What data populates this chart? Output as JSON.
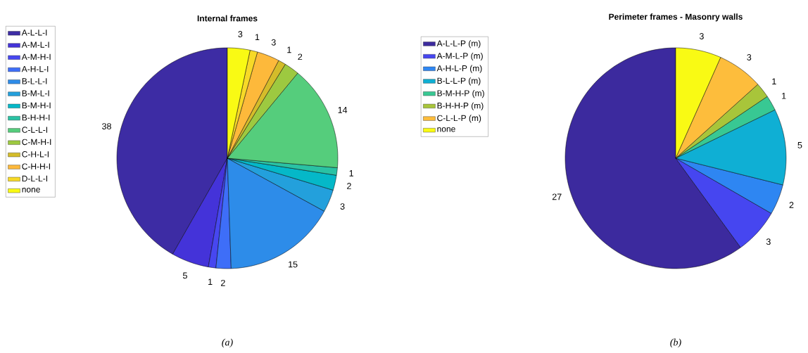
{
  "chart_data": [
    {
      "type": "pie",
      "title": "Internal frames",
      "categories": [
        "A-L-L-I",
        "A-M-L-I",
        "A-M-H-I",
        "A-H-L-I",
        "B-L-L-I",
        "B-M-L-I",
        "B-M-H-I",
        "B-H-H-I",
        "C-L-L-I",
        "C-M-H-I",
        "C-H-L-I",
        "C-H-H-I",
        "D-L-L-I",
        "none"
      ],
      "values": [
        38,
        5,
        1,
        2,
        15,
        3,
        2,
        1,
        14,
        2,
        1,
        3,
        1,
        3
      ],
      "colors": [
        "#3d2ca4",
        "#4433d9",
        "#4747f0",
        "#3e6ef8",
        "#2d8ce9",
        "#23a0dc",
        "#05b8c8",
        "#2ac2a4",
        "#55cd7c",
        "#9dc940",
        "#d4bc2a",
        "#fdb93b",
        "#f7d927",
        "#f9fa14"
      ],
      "data_labels": true,
      "legend": "left",
      "annotations": [
        "(a)"
      ]
    },
    {
      "type": "pie",
      "title": "Perimeter frames - Masonry walls",
      "categories": [
        "A-L-L-P (m)",
        "A-M-L-P (m)",
        "A-H-L-P (m)",
        "B-L-L-P (m)",
        "B-M-H-P (m)",
        "B-H-H-P (m)",
        "C-L-L-P (m)",
        "none"
      ],
      "values": [
        27,
        3,
        2,
        5,
        1,
        1,
        3,
        3
      ],
      "colors": [
        "#3c2a9e",
        "#4646f0",
        "#2e86f2",
        "#0fafd4",
        "#38c893",
        "#a8c53a",
        "#fdbd3c",
        "#f9fa14"
      ],
      "data_labels": true,
      "legend": "left",
      "annotations": [
        "(b)"
      ]
    }
  ]
}
